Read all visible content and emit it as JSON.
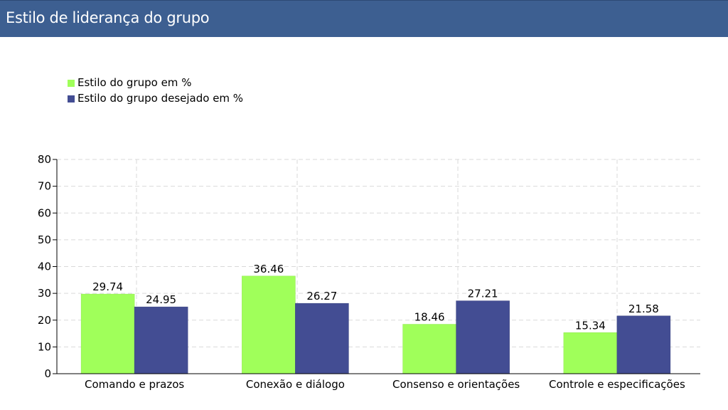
{
  "panel": {
    "title": "Estilo de liderança do grupo"
  },
  "chart_data": {
    "type": "bar",
    "title": "",
    "xlabel": "",
    "ylabel": "",
    "categories": [
      "Comando e prazos",
      "Conexão e diálogo",
      "Consenso e orientações",
      "Controle e especificações"
    ],
    "series": [
      {
        "name": "Estilo do grupo em %",
        "color": "#a0ff5a",
        "values": [
          29.74,
          36.46,
          18.46,
          15.34
        ]
      },
      {
        "name": "Estilo do grupo desejado em %",
        "color": "#434d93",
        "values": [
          24.95,
          26.27,
          27.21,
          21.58
        ]
      }
    ],
    "ylim": [
      0,
      80
    ],
    "yticks": [
      "0",
      "10",
      "20",
      "30",
      "40",
      "50",
      "60",
      "70",
      "80"
    ],
    "grid": true,
    "legend_position": "top-left"
  }
}
